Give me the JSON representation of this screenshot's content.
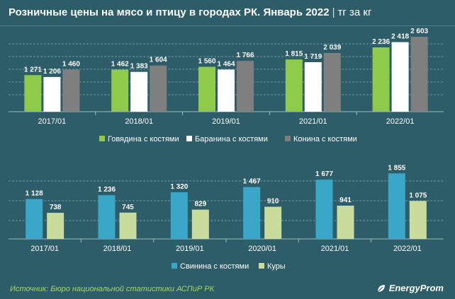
{
  "title": {
    "main": "Розничные цены на мясо и птицу в городах РК. Январь 2022",
    "separator": "|",
    "unit": "тг за кг"
  },
  "colors": {
    "background": "#2d5d68",
    "beef": "#8fcb4a",
    "lamb": "#ffffff",
    "horse": "#7f7f7f",
    "pork": "#3ba7c8",
    "chicken": "#c9dc9b",
    "source": "#a8d85a"
  },
  "footer": {
    "source": "Источник: Бюро национальной статистики АСПиР РК",
    "brand": "EnergyProm",
    "brand_icon": "leaf-icon"
  },
  "chart_data": [
    {
      "type": "bar",
      "categories": [
        "2017/01",
        "2018/01",
        "2019/01",
        "2021/01",
        "2022/01"
      ],
      "series": [
        {
          "name": "Говядина с костями",
          "color": "#8fcb4a",
          "values": [
            1271,
            1462,
            1560,
            1815,
            2236
          ],
          "labels": [
            "1 271",
            "1 462",
            "1 560",
            "1 815",
            "2 236"
          ]
        },
        {
          "name": "Баранина с костями",
          "color": "#ffffff",
          "values": [
            1206,
            1383,
            1464,
            1719,
            2418
          ],
          "labels": [
            "1 206",
            "1 383",
            "1 464",
            "1 719",
            "2 418"
          ]
        },
        {
          "name": "Конина с костями",
          "color": "#7f7f7f",
          "values": [
            1460,
            1604,
            1766,
            2039,
            2603
          ],
          "labels": [
            "1 460",
            "1 604",
            "1 766",
            "2 039",
            "2 603"
          ]
        }
      ],
      "ylim": [
        0,
        2800
      ],
      "grid": true,
      "legend": "bottom"
    },
    {
      "type": "bar",
      "categories": [
        "2017/01",
        "2018/01",
        "2019/01",
        "2020/01",
        "2021/01",
        "2022/01"
      ],
      "series": [
        {
          "name": "Свинина с костями",
          "color": "#3ba7c8",
          "values": [
            1128,
            1236,
            1320,
            1467,
            1677,
            1855
          ],
          "labels": [
            "1 128",
            "1 236",
            "1 320",
            "1 467",
            "1 677",
            "1 855"
          ]
        },
        {
          "name": "Куры",
          "color": "#c9dc9b",
          "values": [
            738,
            745,
            829,
            910,
            941,
            1075
          ],
          "labels": [
            "738",
            "745",
            "829",
            "910",
            "941",
            "1 075"
          ]
        }
      ],
      "ylim": [
        0,
        2000
      ],
      "grid": true,
      "legend": "bottom"
    }
  ]
}
